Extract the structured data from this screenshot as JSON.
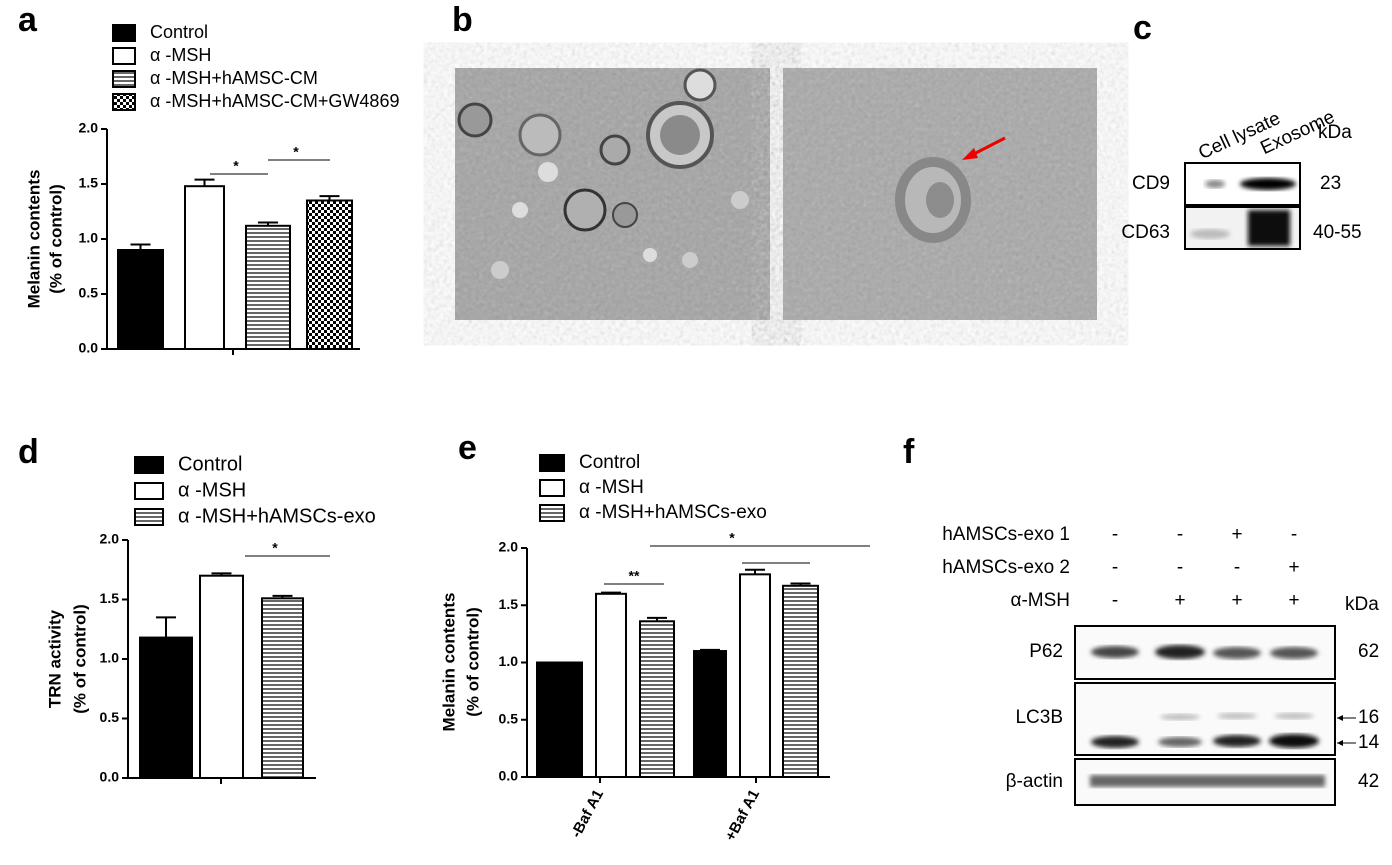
{
  "panel_labels": [
    "a",
    "b",
    "c",
    "d",
    "e",
    "f"
  ],
  "chart_data": [
    {
      "type": "bar",
      "ylabel": [
        "Melanin contents",
        "(% of control)"
      ],
      "categories": [
        null
      ],
      "series": [
        {
          "name": "Control",
          "color": "#000000",
          "values": [
            0.9
          ],
          "errors": [
            0.05
          ]
        },
        {
          "name": "α -MSH",
          "color": "#ffffff",
          "values": [
            1.48
          ],
          "errors": [
            0.06
          ]
        },
        {
          "name": "α -MSH+hAMSC-CM",
          "color": "#ffffff",
          "hatch": "horizontal",
          "values": [
            1.12
          ],
          "errors": [
            0.03
          ]
        },
        {
          "name": "α -MSH+hAMSC-CM+GW4869",
          "color": "#ffffff",
          "hatch": "checker",
          "values": [
            1.35
          ],
          "errors": [
            0.04
          ]
        }
      ],
      "ylim": [
        0,
        2
      ],
      "yticks": [
        {
          "value": 0,
          "label": "0.0"
        },
        0.5,
        {
          "value": 1,
          "label": "1.0"
        },
        1.5,
        {
          "value": 2,
          "label": "2.0"
        }
      ],
      "annotations": [
        "*",
        "*"
      ]
    },
    {
      "type": "bar",
      "ylabel": [
        "TRN activity",
        "(% of control)"
      ],
      "categories": [
        null
      ],
      "series": [
        {
          "name": "Control",
          "color": "#000000",
          "values": [
            1.18
          ],
          "errors": [
            0.17
          ]
        },
        {
          "name": "α -MSH",
          "color": "#ffffff",
          "values": [
            1.7
          ],
          "errors": [
            0.02
          ]
        },
        {
          "name": "α -MSH+hAMSCs-exo",
          "color": "#ffffff",
          "hatch": "horizontal",
          "values": [
            1.51
          ],
          "errors": [
            0.02
          ]
        }
      ],
      "ylim": [
        0,
        2
      ],
      "yticks": [
        {
          "value": 0,
          "label": "0.0"
        },
        0.5,
        {
          "value": 1,
          "label": "1.0"
        },
        1.5,
        {
          "value": 2,
          "label": "2.0"
        }
      ],
      "annotations": [
        "*"
      ]
    },
    {
      "type": "bar",
      "ylabel": [
        "Melanin contents",
        "(% of control)"
      ],
      "categories": [
        "-Baf A1",
        "+Baf A1"
      ],
      "series": [
        {
          "name": "Control",
          "color": "#000000",
          "values": [
            1.0,
            1.1
          ],
          "errors": [
            0.0,
            0.01
          ]
        },
        {
          "name": "α -MSH",
          "color": "#ffffff",
          "values": [
            1.6,
            1.77
          ],
          "errors": [
            0.01,
            0.04
          ]
        },
        {
          "name": "α -MSH+hAMSCs-exo",
          "color": "#ffffff",
          "hatch": "horizontal",
          "values": [
            1.36,
            1.67
          ],
          "errors": [
            0.03,
            0.02
          ]
        }
      ],
      "ylim": [
        0,
        2
      ],
      "yticks": [
        {
          "value": 0,
          "label": "0.0"
        },
        0.5,
        {
          "value": 1,
          "label": "1.0"
        },
        1.5,
        {
          "value": 2,
          "label": "2.0"
        }
      ],
      "annotations": [
        "**",
        "*"
      ]
    }
  ],
  "blot_c": {
    "lanes": [
      "Cell lysate",
      "Exosome"
    ],
    "unit": "kDa",
    "rows": [
      {
        "label": "CD9",
        "size": "23"
      },
      {
        "label": "CD63",
        "size": "40-55"
      }
    ]
  },
  "blot_f": {
    "treatments": [
      {
        "label": "hAMSCs-exo 1",
        "signs": [
          "-",
          "-",
          "+",
          "-"
        ]
      },
      {
        "label": "hAMSCs-exo 2",
        "signs": [
          "-",
          "-",
          "-",
          "+"
        ]
      },
      {
        "label": "α-MSH",
        "signs": [
          "-",
          "+",
          "+",
          "+"
        ]
      }
    ],
    "unit": "kDa",
    "rows": [
      {
        "label": "P62",
        "sizes": [
          "62"
        ]
      },
      {
        "label": "LC3B",
        "sizes": [
          "16",
          "14"
        ]
      },
      {
        "label": "β-actin",
        "sizes": [
          "42"
        ]
      }
    ]
  }
}
